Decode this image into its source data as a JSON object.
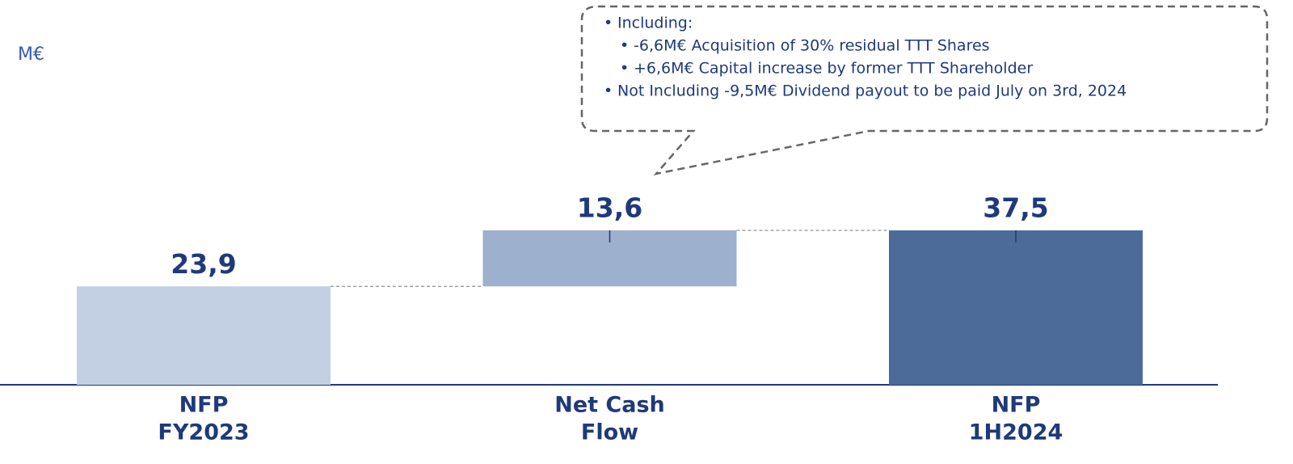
{
  "chart_data": {
    "type": "waterfall",
    "unit_label": "M€",
    "categories": [
      [
        "NFP",
        "FY2023"
      ],
      [
        "Net Cash",
        "Flow"
      ],
      [
        "NFP",
        "1H2024"
      ]
    ],
    "measures": [
      "absolute",
      "relative",
      "total"
    ],
    "values": [
      23.9,
      13.6,
      37.5
    ],
    "value_labels": [
      "23,9",
      "13,6",
      "37,5"
    ],
    "colors": [
      "#c3cfe2",
      "#9db0cd",
      "#4d6b99"
    ],
    "annotation": [
      {
        "text": "Including:",
        "level": 0
      },
      {
        "text": "-6,6M€ Acquisition of 30% residual TTT Shares",
        "level": 1
      },
      {
        "text": "+6,6M€ Capital increase by former TTT Shareholder",
        "level": 1
      },
      {
        "text": "Not Including -9,5M€ Dividend payout to be paid July on 3rd, 2024",
        "level": 0
      }
    ]
  }
}
